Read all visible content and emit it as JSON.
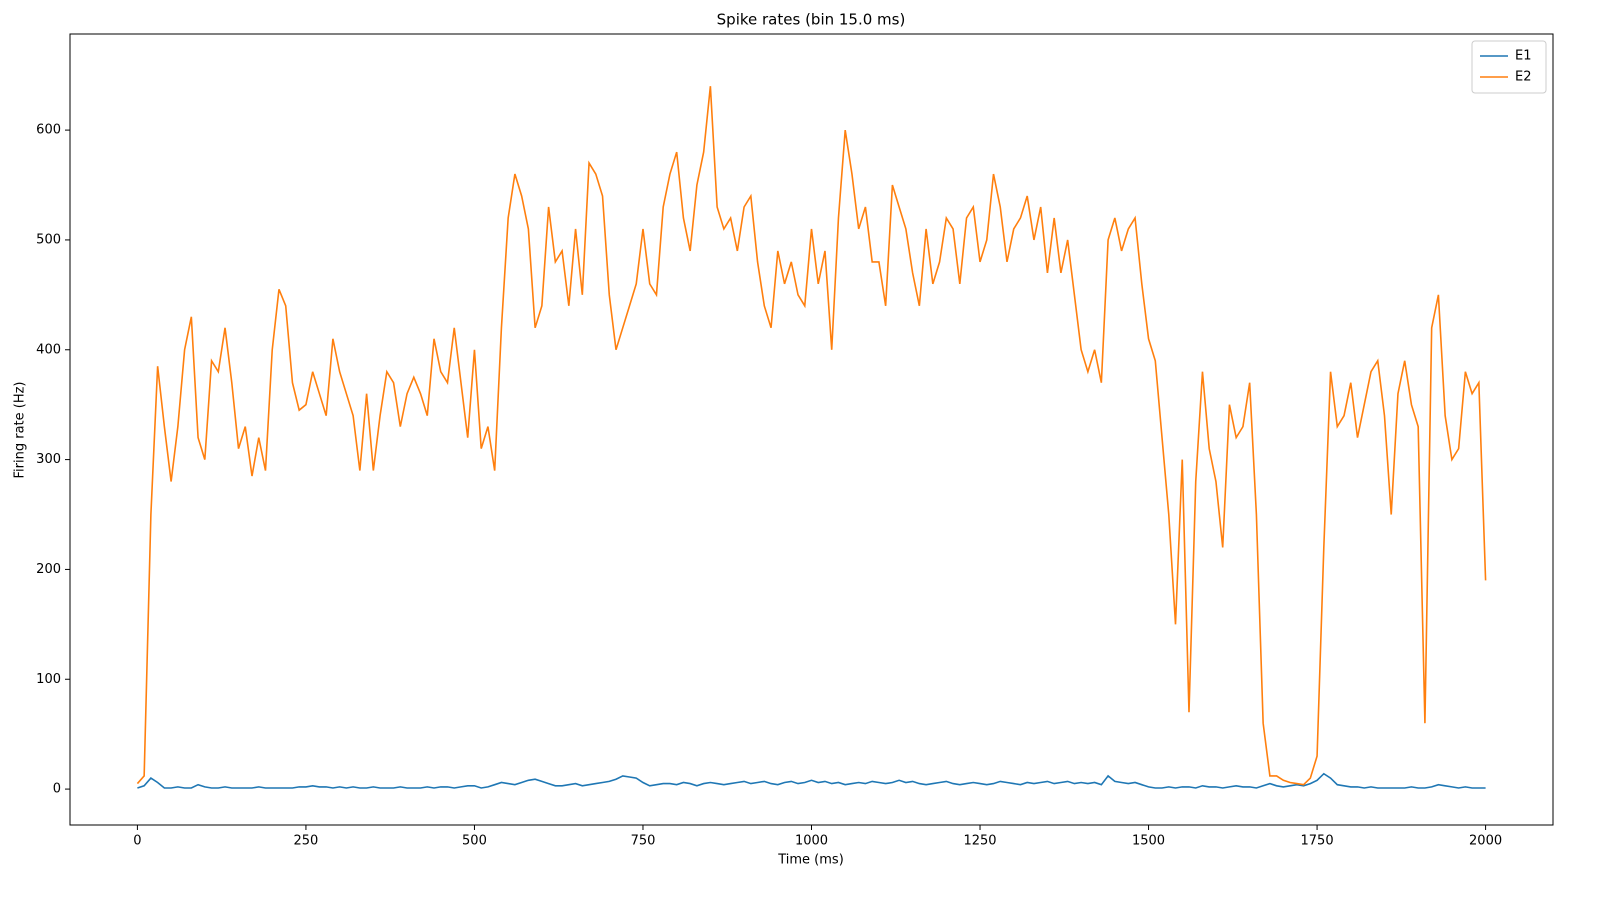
{
  "chart_data": {
    "type": "line",
    "title": "Spike rates (bin 15.0 ms)",
    "xlabel": "Time (ms)",
    "ylabel": "Firing rate (Hz)",
    "x": [
      0,
      10,
      20,
      30,
      40,
      50,
      60,
      70,
      80,
      90,
      100,
      110,
      120,
      130,
      140,
      150,
      160,
      170,
      180,
      190,
      200,
      210,
      220,
      230,
      240,
      250,
      260,
      270,
      280,
      290,
      300,
      310,
      320,
      330,
      340,
      350,
      360,
      370,
      380,
      390,
      400,
      410,
      420,
      430,
      440,
      450,
      460,
      470,
      480,
      490,
      500,
      510,
      520,
      530,
      540,
      550,
      560,
      570,
      580,
      590,
      600,
      610,
      620,
      630,
      640,
      650,
      660,
      670,
      680,
      690,
      700,
      710,
      720,
      730,
      740,
      750,
      760,
      770,
      780,
      790,
      800,
      810,
      820,
      830,
      840,
      850,
      860,
      870,
      880,
      890,
      900,
      910,
      920,
      930,
      940,
      950,
      960,
      970,
      980,
      990,
      1000,
      1010,
      1020,
      1030,
      1040,
      1050,
      1060,
      1070,
      1080,
      1090,
      1100,
      1110,
      1120,
      1130,
      1140,
      1150,
      1160,
      1170,
      1180,
      1190,
      1200,
      1210,
      1220,
      1230,
      1240,
      1250,
      1260,
      1270,
      1280,
      1290,
      1300,
      1310,
      1320,
      1330,
      1340,
      1350,
      1360,
      1370,
      1380,
      1390,
      1400,
      1410,
      1420,
      1430,
      1440,
      1450,
      1460,
      1470,
      1480,
      1490,
      1500,
      1510,
      1520,
      1530,
      1540,
      1550,
      1560,
      1570,
      1580,
      1590,
      1600,
      1610,
      1620,
      1630,
      1640,
      1650,
      1660,
      1670,
      1680,
      1690,
      1700,
      1710,
      1720,
      1730,
      1740,
      1750,
      1760,
      1770,
      1780,
      1790,
      1800,
      1810,
      1820,
      1830,
      1840,
      1850,
      1860,
      1870,
      1880,
      1890,
      1900,
      1910,
      1920,
      1930,
      1940,
      1950,
      1960,
      1970,
      1980,
      1990,
      2000
    ],
    "series": [
      {
        "name": "E1",
        "color": "#1f77b4",
        "values": [
          1,
          3,
          10,
          6,
          1,
          1,
          2,
          1,
          1,
          4,
          2,
          1,
          1,
          2,
          1,
          1,
          1,
          1,
          2,
          1,
          1,
          1,
          1,
          1,
          2,
          2,
          3,
          2,
          2,
          1,
          2,
          1,
          2,
          1,
          1,
          2,
          1,
          1,
          1,
          2,
          1,
          1,
          1,
          2,
          1,
          2,
          2,
          1,
          2,
          3,
          3,
          1,
          2,
          4,
          6,
          5,
          4,
          6,
          8,
          9,
          7,
          5,
          3,
          3,
          4,
          5,
          3,
          4,
          5,
          6,
          7,
          9,
          12,
          11,
          10,
          6,
          3,
          4,
          5,
          5,
          4,
          6,
          5,
          3,
          5,
          6,
          5,
          4,
          5,
          6,
          7,
          5,
          6,
          7,
          5,
          4,
          6,
          7,
          5,
          6,
          8,
          6,
          7,
          5,
          6,
          4,
          5,
          6,
          5,
          7,
          6,
          5,
          6,
          8,
          6,
          7,
          5,
          4,
          5,
          6,
          7,
          5,
          4,
          5,
          6,
          5,
          4,
          5,
          7,
          6,
          5,
          4,
          6,
          5,
          6,
          7,
          5,
          6,
          7,
          5,
          6,
          5,
          6,
          4,
          12,
          7,
          6,
          5,
          6,
          4,
          2,
          1,
          1,
          2,
          1,
          2,
          2,
          1,
          3,
          2,
          2,
          1,
          2,
          3,
          2,
          2,
          1,
          3,
          5,
          3,
          2,
          3,
          4,
          3,
          5,
          8,
          14,
          10,
          4,
          3,
          2,
          2,
          1,
          2,
          1,
          1,
          1,
          1,
          1,
          2,
          1,
          1,
          2,
          4,
          3,
          2,
          1,
          2,
          1,
          1,
          1
        ]
      },
      {
        "name": "E2",
        "color": "#ff7f0e",
        "values": [
          5,
          12,
          250,
          385,
          330,
          280,
          330,
          400,
          430,
          320,
          300,
          390,
          380,
          420,
          370,
          310,
          330,
          285,
          320,
          290,
          400,
          455,
          440,
          370,
          345,
          350,
          380,
          360,
          340,
          410,
          380,
          360,
          340,
          290,
          360,
          290,
          340,
          380,
          370,
          330,
          360,
          375,
          360,
          340,
          410,
          380,
          370,
          420,
          370,
          320,
          400,
          310,
          330,
          290,
          420,
          520,
          560,
          540,
          510,
          420,
          440,
          530,
          480,
          490,
          440,
          510,
          450,
          570,
          560,
          540,
          450,
          400,
          420,
          440,
          460,
          510,
          460,
          450,
          530,
          560,
          580,
          520,
          490,
          550,
          580,
          640,
          530,
          510,
          520,
          490,
          530,
          540,
          480,
          440,
          420,
          490,
          460,
          480,
          450,
          440,
          510,
          460,
          490,
          400,
          520,
          600,
          560,
          510,
          530,
          480,
          480,
          440,
          550,
          530,
          510,
          470,
          440,
          510,
          460,
          480,
          520,
          510,
          460,
          520,
          530,
          480,
          500,
          560,
          530,
          480,
          510,
          520,
          540,
          500,
          530,
          470,
          520,
          470,
          500,
          450,
          400,
          380,
          400,
          370,
          500,
          520,
          490,
          510,
          520,
          460,
          410,
          390,
          320,
          250,
          150,
          300,
          70,
          280,
          380,
          310,
          280,
          220,
          350,
          320,
          330,
          370,
          250,
          60,
          12,
          12,
          8,
          6,
          5,
          4,
          10,
          30,
          220,
          380,
          330,
          340,
          370,
          320,
          350,
          380,
          390,
          340,
          250,
          360,
          390,
          350,
          330,
          60,
          420,
          450,
          340,
          300,
          310,
          380,
          360,
          370,
          190
        ]
      }
    ],
    "xlim": [
      -100,
      2100
    ],
    "ylim": [
      -32.7,
      687.5
    ],
    "xticks": [
      0,
      250,
      500,
      750,
      1000,
      1250,
      1500,
      1750,
      2000
    ],
    "yticks": [
      0,
      100,
      200,
      300,
      400,
      500,
      600
    ],
    "legend": "upper right"
  }
}
